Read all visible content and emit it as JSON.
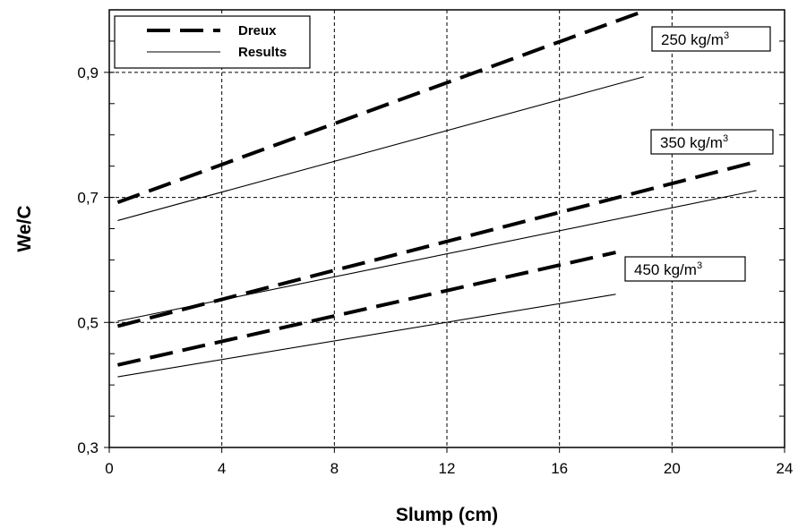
{
  "chart_data": {
    "type": "line",
    "xlabel": "Slump (cm)",
    "ylabel": "We/C",
    "xlim": [
      0,
      24
    ],
    "ylim": [
      0.3,
      1.0
    ],
    "x_ticks": [
      0,
      4,
      8,
      12,
      16,
      20,
      24
    ],
    "x_tick_labels": [
      "0",
      "4",
      "8",
      "12",
      "16",
      "20",
      "24"
    ],
    "y_ticks": [
      0.3,
      0.5,
      0.7,
      0.9
    ],
    "y_tick_labels": [
      "0,3",
      "0,5",
      "0,7",
      "0,9"
    ],
    "grid": true,
    "legend": {
      "placement": "top-left",
      "entries": [
        {
          "label": "Dreux",
          "style": "dashed-thick"
        },
        {
          "label": "Results",
          "style": "solid-thin"
        }
      ]
    },
    "group_labels": [
      {
        "text": "250 kg/m",
        "sup": "3"
      },
      {
        "text": "350 kg/m",
        "sup": "3"
      },
      {
        "text": "450 kg/m",
        "sup": "3"
      }
    ],
    "series": [
      {
        "legend": "Dreux",
        "group": "250 kg/m3",
        "style": "dashed-thick",
        "x": [
          0.3,
          19.0
        ],
        "y": [
          0.692,
          0.998
        ]
      },
      {
        "legend": "Results",
        "group": "250 kg/m3",
        "style": "solid-thin",
        "x": [
          0.3,
          19.0
        ],
        "y": [
          0.663,
          0.893
        ]
      },
      {
        "legend": "Dreux",
        "group": "350 kg/m3",
        "style": "dashed-thick",
        "x": [
          0.3,
          23.0
        ],
        "y": [
          0.494,
          0.757
        ]
      },
      {
        "legend": "Results",
        "group": "350 kg/m3",
        "style": "solid-thin",
        "x": [
          0.3,
          23.0
        ],
        "y": [
          0.502,
          0.711
        ]
      },
      {
        "legend": "Dreux",
        "group": "450 kg/m3",
        "style": "dashed-thick",
        "x": [
          0.3,
          18.0
        ],
        "y": [
          0.432,
          0.612
        ]
      },
      {
        "legend": "Results",
        "group": "450 kg/m3",
        "style": "solid-thin",
        "x": [
          0.3,
          18.0
        ],
        "y": [
          0.413,
          0.545
        ]
      }
    ],
    "colors": {
      "line": "#000000",
      "grid": "#000000",
      "background": "#ffffff"
    }
  }
}
